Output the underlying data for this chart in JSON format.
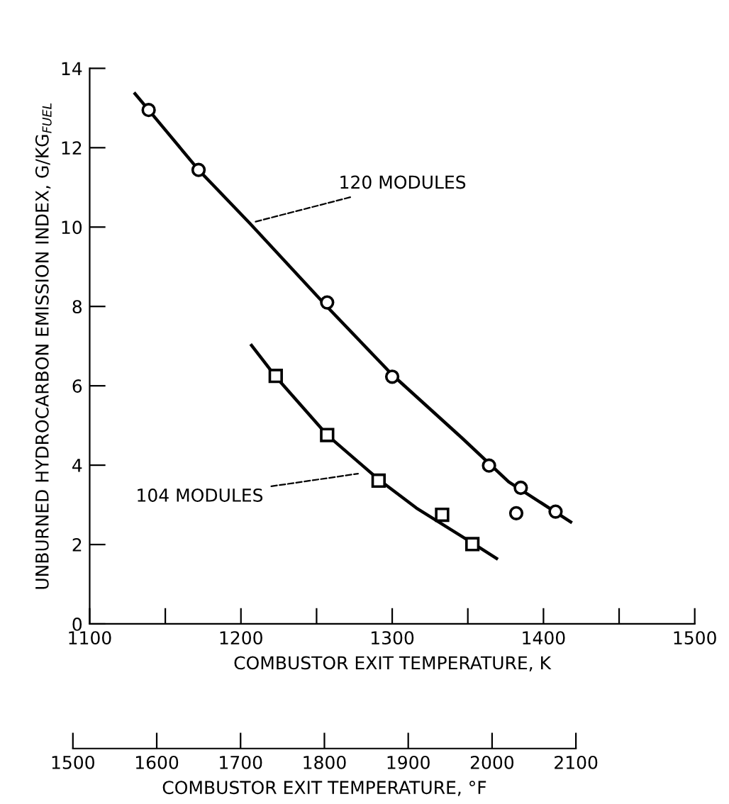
{
  "chart_data": {
    "type": "scatter",
    "xlabel": "COMBUSTOR EXIT TEMPERATURE, K",
    "ylabel": "UNBURNED HYDROCARBON EMISSION INDEX, G/KG$_{FUEL}$",
    "x2label": "COMBUSTOR EXIT TEMPERATURE, °F",
    "xlim": [
      1100,
      1500
    ],
    "xticks": [
      1100,
      {
        "value": 1150,
        "label": null
      },
      1200,
      {
        "value": 1250,
        "label": null
      },
      1300,
      {
        "value": 1350,
        "label": null
      },
      1400,
      {
        "value": 1450,
        "label": null
      },
      1500
    ],
    "ylim": [
      0,
      14
    ],
    "yticks": [
      0,
      2,
      4,
      6,
      8,
      10,
      12,
      14
    ],
    "x2lim": [
      1500,
      2100
    ],
    "x2ticks": [
      1500,
      1600,
      1700,
      1800,
      1900,
      2000,
      2100
    ],
    "grid": false,
    "series": [
      {
        "marker": "circle",
        "color": "#000000",
        "x": [
          1139,
          1172,
          1257,
          1300,
          1364,
          1385,
          1382,
          1408
        ],
        "values": [
          12.95,
          11.44,
          8.1,
          6.23,
          3.99,
          3.43,
          2.79,
          2.83
        ]
      },
      {
        "type": "scatter",
        "marker": "square",
        "color": "#000000",
        "x": [
          1223,
          1257,
          1291,
          1333,
          1353
        ],
        "values": [
          6.25,
          4.76,
          3.61,
          2.75,
          2.01
        ]
      },
      {
        "type": "line",
        "marker": "none",
        "color": "#000000",
        "x": [
          1130,
          1139,
          1172,
          1206,
          1257,
          1300,
          1346,
          1377,
          1418
        ],
        "values": [
          13.36,
          12.95,
          11.44,
          10.09,
          7.99,
          6.28,
          4.69,
          3.58,
          2.57
        ]
      },
      {
        "type": "line",
        "marker": "none",
        "color": "#000000",
        "x": [
          1207,
          1223,
          1257,
          1291,
          1316,
          1353,
          1369
        ],
        "values": [
          7.02,
          6.23,
          4.76,
          3.64,
          2.92,
          2.04,
          1.65
        ]
      }
    ],
    "annotations": [
      {
        "text": "120 MODULES",
        "x": 1206,
        "y": 10.1
      },
      {
        "text": "104 MODULES",
        "x": 1280,
        "y": 3.8
      }
    ]
  }
}
